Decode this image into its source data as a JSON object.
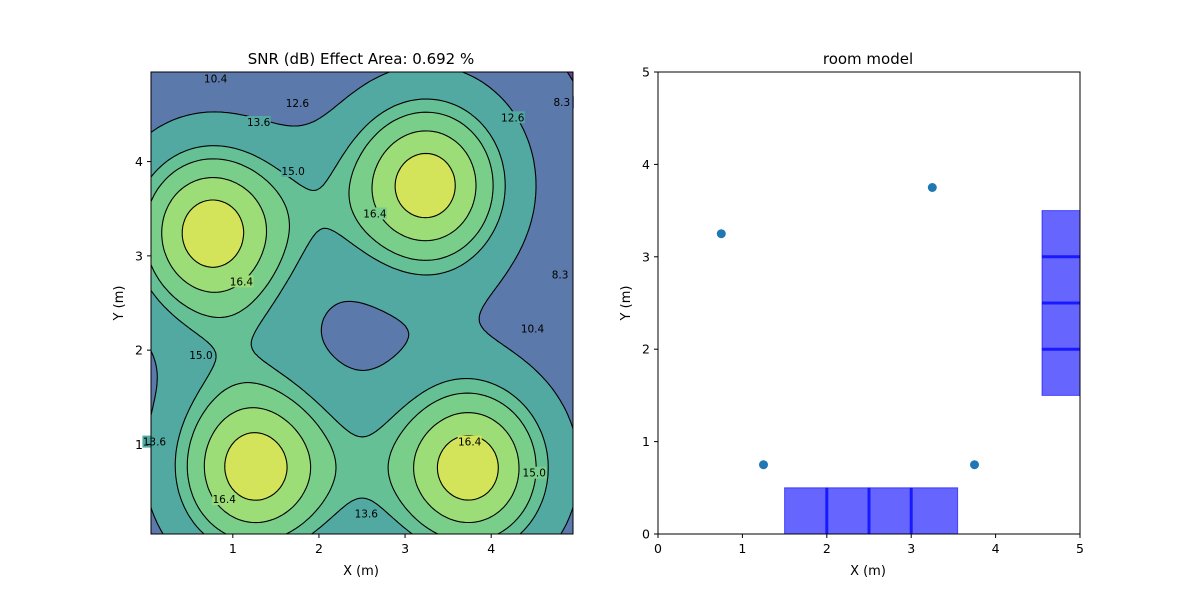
{
  "chart_data": [
    {
      "type": "contour",
      "title": "SNR (dB) Effect Area: 0.692 %",
      "xlabel": "X (m)",
      "ylabel": "Y (m)",
      "xlim": [
        0.05,
        4.95
      ],
      "ylim": [
        0.05,
        4.95
      ],
      "xticks": [
        1,
        2,
        3,
        4
      ],
      "yticks": [
        1,
        2,
        3,
        4
      ],
      "colormap": "viridis",
      "color_low": "#6a2c88",
      "color_high": "#e2e553",
      "sources": [
        {
          "x": 0.75,
          "y": 3.25
        },
        {
          "x": 3.25,
          "y": 3.75
        },
        {
          "x": 1.25,
          "y": 0.75
        },
        {
          "x": 3.75,
          "y": 0.75
        }
      ],
      "levels": [
        8.3,
        10.4,
        12.6,
        13.6,
        15.0,
        16.4
      ],
      "contour_labels": [
        {
          "text": "10.4",
          "x": 0.8,
          "y": 4.88
        },
        {
          "text": "12.6",
          "x": 1.75,
          "y": 4.62
        },
        {
          "text": "13.6",
          "x": 1.3,
          "y": 4.42
        },
        {
          "text": "15.0",
          "x": 1.7,
          "y": 3.9
        },
        {
          "text": "16.4",
          "x": 2.65,
          "y": 3.45
        },
        {
          "text": "16.4",
          "x": 1.1,
          "y": 2.73
        },
        {
          "text": "12.6",
          "x": 4.25,
          "y": 4.47
        },
        {
          "text": "8.3",
          "x": 4.82,
          "y": 4.63
        },
        {
          "text": "8.3",
          "x": 4.8,
          "y": 2.8
        },
        {
          "text": "10.4",
          "x": 4.48,
          "y": 2.23
        },
        {
          "text": "15.0",
          "x": 0.63,
          "y": 1.95
        },
        {
          "text": "13.6",
          "x": 0.09,
          "y": 1.03
        },
        {
          "text": "16.4",
          "x": 0.9,
          "y": 0.42
        },
        {
          "text": "13.6",
          "x": 2.55,
          "y": 0.27
        },
        {
          "text": "16.4",
          "x": 3.75,
          "y": 1.03
        },
        {
          "text": "15.0",
          "x": 4.5,
          "y": 0.7
        }
      ]
    },
    {
      "type": "scatter",
      "title": "room model",
      "xlabel": "X (m)",
      "ylabel": "Y (m)",
      "xlim": [
        0,
        5
      ],
      "ylim": [
        0,
        5
      ],
      "xticks": [
        0,
        1,
        2,
        3,
        4,
        5
      ],
      "yticks": [
        0,
        1,
        2,
        3,
        4,
        5
      ],
      "points": [
        {
          "x": 0.75,
          "y": 3.25
        },
        {
          "x": 3.25,
          "y": 3.75
        },
        {
          "x": 1.25,
          "y": 0.75
        },
        {
          "x": 3.75,
          "y": 0.75
        }
      ],
      "point_color": "#1f77b4",
      "rects": [
        {
          "x0": 1.5,
          "x1": 3.55,
          "y0": 0,
          "y1": 0.5
        },
        {
          "x0": 4.55,
          "x1": 5.0,
          "y0": 1.5,
          "y1": 3.5
        }
      ],
      "rect_color": "#0000ff",
      "lines": [
        {
          "x0": 2.0,
          "y0": 0,
          "x1": 2.0,
          "y1": 0.5
        },
        {
          "x0": 2.5,
          "y0": 0,
          "x1": 2.5,
          "y1": 0.5
        },
        {
          "x0": 3.0,
          "y0": 0,
          "x1": 3.0,
          "y1": 0.5
        },
        {
          "x0": 4.55,
          "y0": 2.0,
          "x1": 5.0,
          "y1": 2.0
        },
        {
          "x0": 4.55,
          "y0": 2.5,
          "x1": 5.0,
          "y1": 2.5
        },
        {
          "x0": 4.55,
          "y0": 3.0,
          "x1": 5.0,
          "y1": 3.0
        }
      ]
    }
  ]
}
